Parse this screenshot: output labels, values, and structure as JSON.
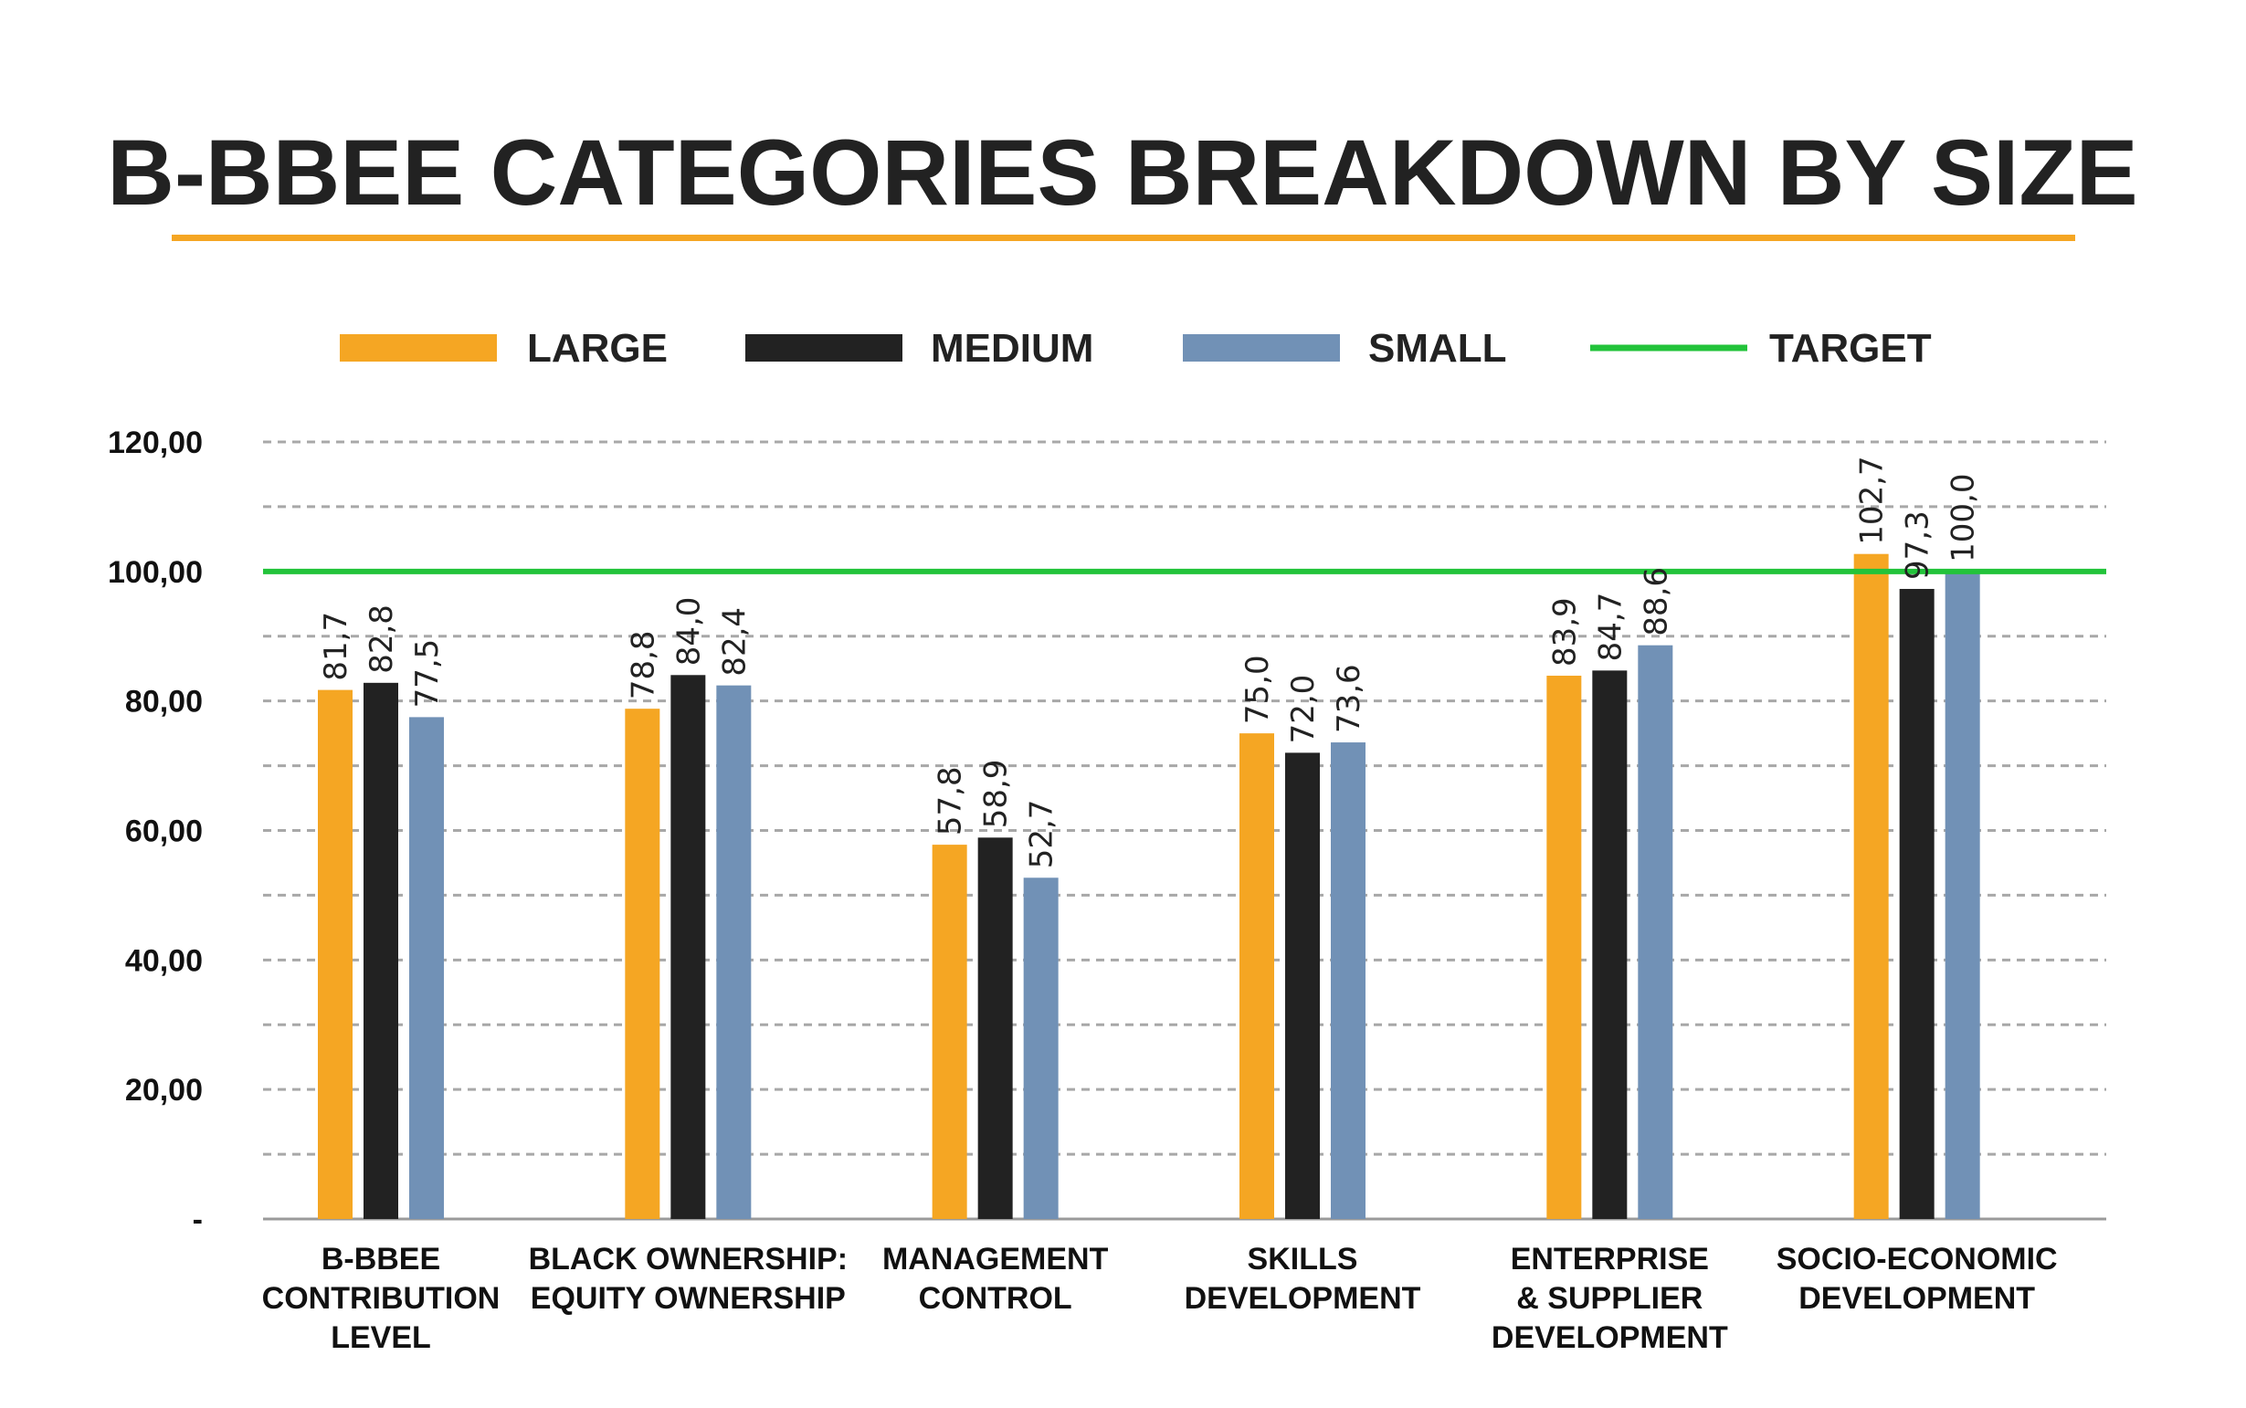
{
  "chart_data": {
    "type": "bar",
    "title": "B-BBEE CATEGORIES BREAKDOWN BY SIZE",
    "categories": [
      [
        "B-BBEE",
        "CONTRIBUTION",
        "LEVEL"
      ],
      [
        "BLACK OWNERSHIP:",
        "EQUITY OWNERSHIP"
      ],
      [
        "MANAGEMENT",
        "CONTROL"
      ],
      [
        "SKILLS",
        "DEVELOPMENT"
      ],
      [
        "ENTERPRISE",
        "& SUPPLIER",
        "DEVELOPMENT"
      ],
      [
        "SOCIO-ECONOMIC",
        "DEVELOPMENT"
      ]
    ],
    "series": [
      {
        "name": "LARGE",
        "color": "#F5A623",
        "values": [
          81.7,
          78.8,
          57.8,
          75.0,
          83.9,
          102.7
        ],
        "labels": [
          "81,7",
          "78,8",
          "57,8",
          "75,0",
          "83,9",
          "102,7"
        ]
      },
      {
        "name": "MEDIUM",
        "color": "#222222",
        "values": [
          82.8,
          84.0,
          58.9,
          72.0,
          84.7,
          97.3
        ],
        "labels": [
          "82,8",
          "84,0",
          "58,9",
          "72,0",
          "84,7",
          "97,3"
        ]
      },
      {
        "name": "SMALL",
        "color": "#7191B6",
        "values": [
          77.5,
          82.4,
          52.7,
          73.6,
          88.6,
          100.0
        ],
        "labels": [
          "77,5",
          "82,4",
          "52,7",
          "73,6",
          "88,6",
          "100,0"
        ]
      }
    ],
    "target": {
      "name": "TARGET",
      "value": 100,
      "color": "#22C33A"
    },
    "ylim": [
      0,
      120
    ],
    "yticks": [
      {
        "value": 0,
        "label": "-"
      },
      {
        "value": 20,
        "label": "20,00"
      },
      {
        "value": 40,
        "label": "40,00"
      },
      {
        "value": 60,
        "label": "60,00"
      },
      {
        "value": 80,
        "label": "80,00"
      },
      {
        "value": 100,
        "label": "100,00"
      },
      {
        "value": 120,
        "label": "120,00"
      }
    ],
    "grid": true,
    "legend_position": "top",
    "accent_color": "#F5A623"
  }
}
